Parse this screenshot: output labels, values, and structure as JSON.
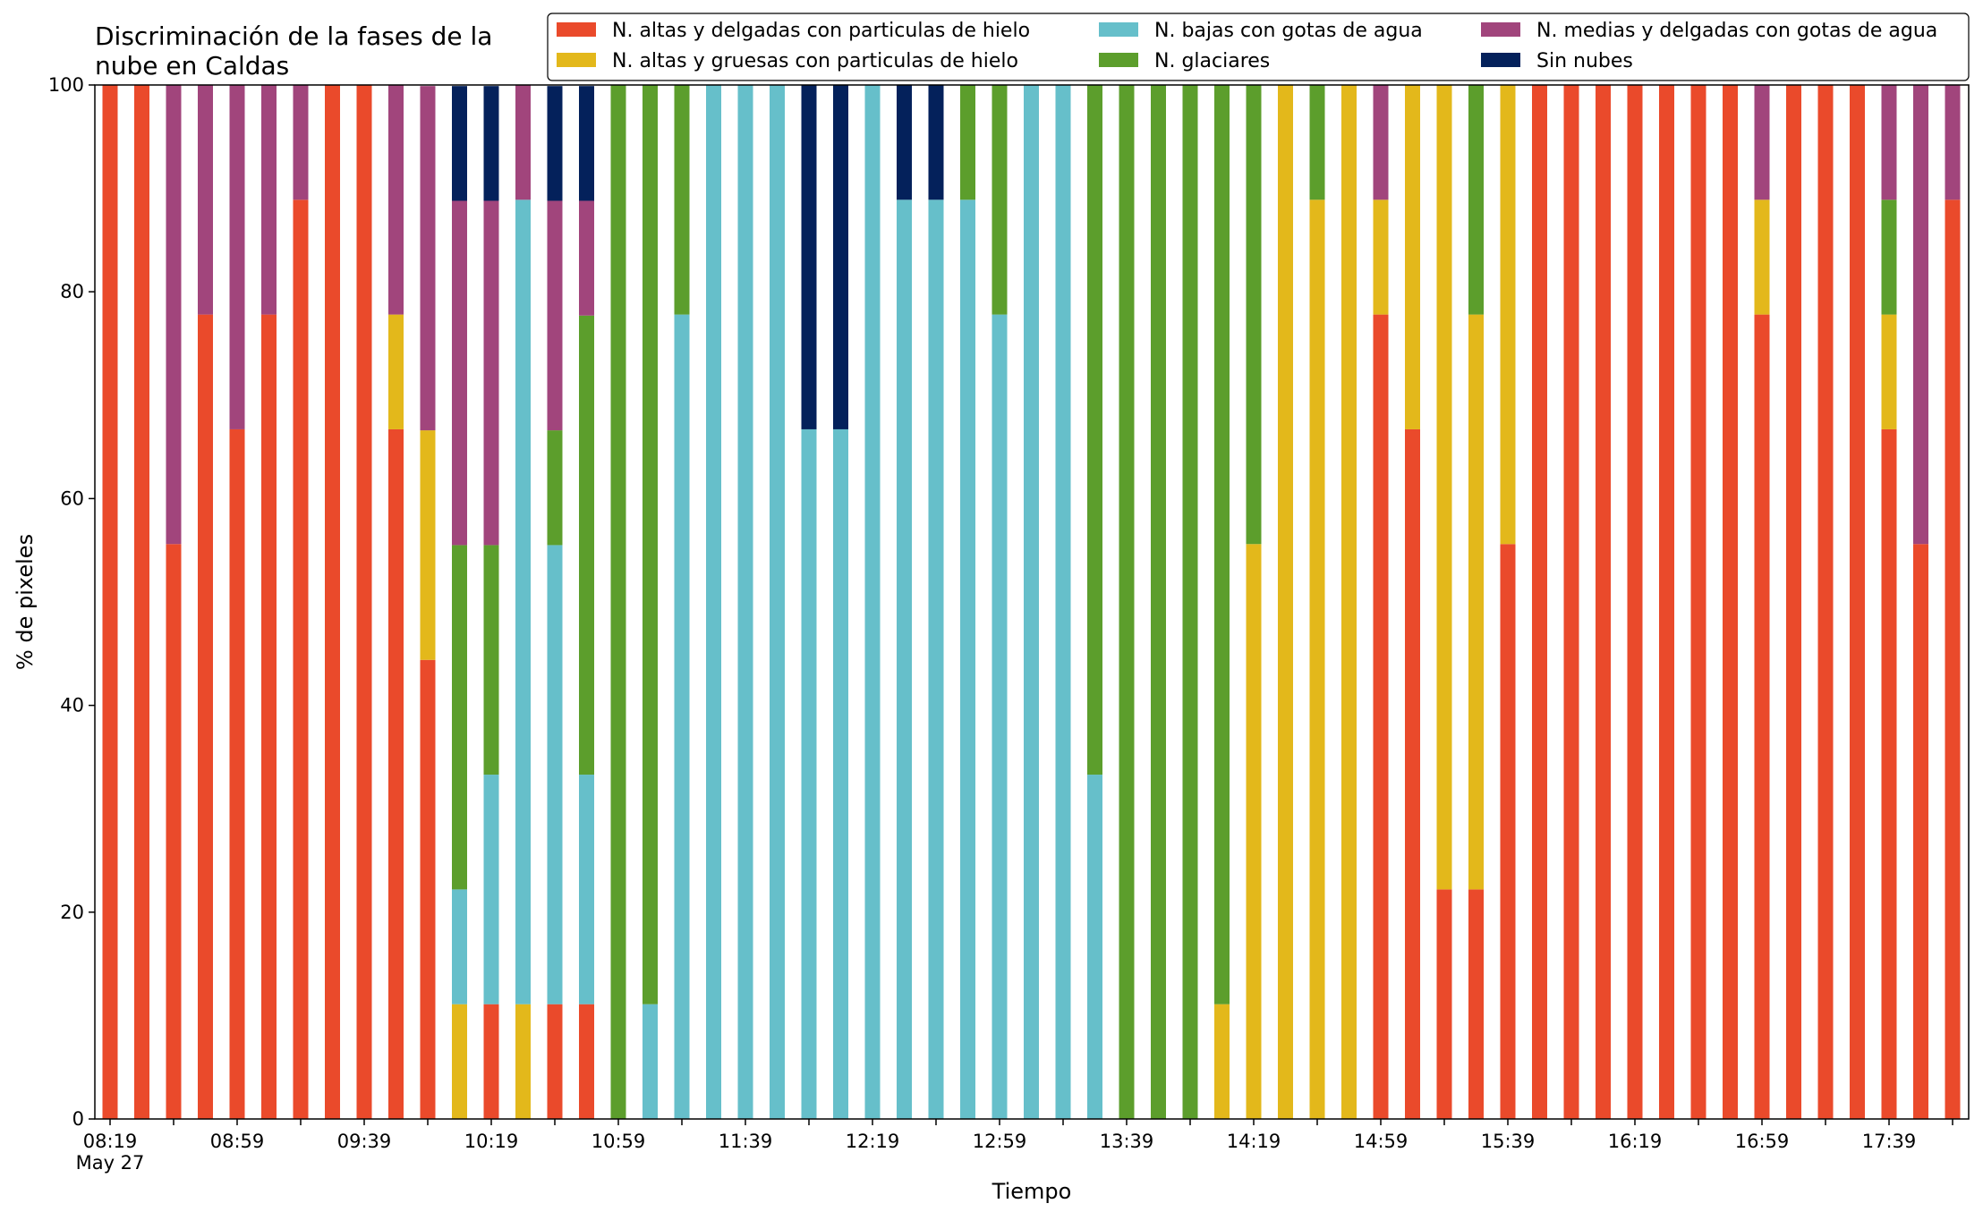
{
  "chart_data": {
    "type": "bar",
    "stacked": true,
    "title": "Discriminación de la fases de la\nnube en Caldas",
    "xlabel": "Tiempo",
    "ylabel": "% de pixeles",
    "ylim": [
      0,
      100
    ],
    "yticks": [
      0,
      20,
      40,
      60,
      80,
      100
    ],
    "grid": false,
    "legend_position": "top-right",
    "x_start_time": "08:19",
    "x_interval_minutes": 10,
    "xtick_labels": [
      {
        "index": 0,
        "label": "08:19",
        "sublabel": "May 27"
      },
      {
        "index": 4,
        "label": "08:59"
      },
      {
        "index": 8,
        "label": "09:39"
      },
      {
        "index": 12,
        "label": "10:19"
      },
      {
        "index": 16,
        "label": "10:59"
      },
      {
        "index": 20,
        "label": "11:39"
      },
      {
        "index": 24,
        "label": "12:19"
      },
      {
        "index": 28,
        "label": "12:59"
      },
      {
        "index": 32,
        "label": "13:39"
      },
      {
        "index": 36,
        "label": "14:19"
      },
      {
        "index": 40,
        "label": "14:59"
      },
      {
        "index": 44,
        "label": "15:39"
      },
      {
        "index": 48,
        "label": "16:19"
      },
      {
        "index": 52,
        "label": "16:59"
      },
      {
        "index": 56,
        "label": "17:39"
      }
    ],
    "series": [
      {
        "name": "N. altas y delgadas con particulas de hielo",
        "color": "#ea4a2b",
        "values": [
          100,
          100,
          55.6,
          77.8,
          66.7,
          77.8,
          88.9,
          100,
          100,
          66.7,
          44.4,
          0,
          11.1,
          0,
          11.1,
          11.1,
          0,
          0,
          0,
          0,
          0,
          0,
          0,
          0,
          0,
          0,
          0,
          0,
          0,
          0,
          0,
          0,
          0,
          0,
          0,
          0,
          0,
          0,
          0,
          0,
          77.8,
          66.7,
          22.2,
          22.2,
          55.6,
          100,
          100,
          100,
          100,
          100,
          100,
          100,
          77.8,
          100,
          100,
          100,
          66.7,
          55.6,
          88.9
        ]
      },
      {
        "name": "N. altas y gruesas con particulas de hielo",
        "color": "#e3b81b",
        "values": [
          0,
          0,
          0,
          0,
          0,
          0,
          0,
          0,
          0,
          11.1,
          22.2,
          11.1,
          0,
          11.1,
          0,
          0,
          0,
          0,
          0,
          0,
          0,
          0,
          0,
          0,
          0,
          0,
          0,
          0,
          0,
          0,
          0,
          0,
          0,
          0,
          0,
          11.1,
          55.6,
          100,
          88.9,
          100,
          11.1,
          33.3,
          77.8,
          55.6,
          44.4,
          0,
          0,
          0,
          0,
          0,
          0,
          0,
          11.1,
          0,
          0,
          0,
          11.1,
          0,
          0
        ]
      },
      {
        "name": "N. bajas con gotas de agua",
        "color": "#66bfca",
        "values": [
          0,
          0,
          0,
          0,
          0,
          0,
          0,
          0,
          0,
          0,
          0,
          11.1,
          22.2,
          77.8,
          44.4,
          22.2,
          0,
          11.1,
          77.8,
          100,
          100,
          100,
          66.7,
          66.7,
          100,
          88.9,
          88.9,
          88.9,
          77.8,
          100,
          100,
          33.3,
          0,
          0,
          0,
          0,
          0,
          0,
          0,
          0,
          0,
          0,
          0,
          0,
          0,
          0,
          0,
          0,
          0,
          0,
          0,
          0,
          0,
          0,
          0,
          0,
          0,
          0,
          0
        ]
      },
      {
        "name": "N. glaciares",
        "color": "#5c9e2c",
        "values": [
          0,
          0,
          0,
          0,
          0,
          0,
          0,
          0,
          0,
          0,
          0,
          33.3,
          22.2,
          0,
          11.1,
          44.4,
          100,
          88.9,
          22.2,
          0,
          0,
          0,
          0,
          0,
          0,
          0,
          0,
          11.1,
          22.2,
          0,
          0,
          66.7,
          100,
          100,
          100,
          88.9,
          44.4,
          0,
          11.1,
          0,
          0,
          0,
          0,
          22.2,
          0,
          0,
          0,
          0,
          0,
          0,
          0,
          0,
          0,
          0,
          0,
          0,
          11.1,
          0,
          0
        ]
      },
      {
        "name": "N. medias y delgadas con gotas de agua",
        "color": "#a1457c",
        "values": [
          0,
          0,
          44.4,
          22.2,
          33.3,
          22.2,
          11.1,
          0,
          0,
          22.2,
          33.3,
          33.3,
          33.3,
          11.1,
          22.2,
          11.1,
          0,
          0,
          0,
          0,
          0,
          0,
          0,
          0,
          0,
          0,
          0,
          0,
          0,
          0,
          0,
          0,
          0,
          0,
          0,
          0,
          0,
          0,
          0,
          0,
          11.1,
          0,
          0,
          0,
          0,
          0,
          0,
          0,
          0,
          0,
          0,
          0,
          11.1,
          0,
          0,
          0,
          11.1,
          44.4,
          11.1
        ]
      },
      {
        "name": "Sin nubes",
        "color": "#04215b",
        "values": [
          0,
          0,
          0,
          0,
          0,
          0,
          0,
          0,
          0,
          0,
          0,
          11.1,
          11.1,
          0,
          11.1,
          11.1,
          0,
          0,
          0,
          0,
          0,
          0,
          33.3,
          33.3,
          0,
          11.1,
          11.1,
          0,
          0,
          0,
          0,
          0,
          0,
          0,
          0,
          0,
          0,
          0,
          0,
          0,
          0,
          0,
          0,
          0,
          0,
          0,
          0,
          0,
          0,
          0,
          0,
          0,
          0,
          0,
          0,
          0,
          0,
          0,
          0
        ]
      }
    ]
  }
}
